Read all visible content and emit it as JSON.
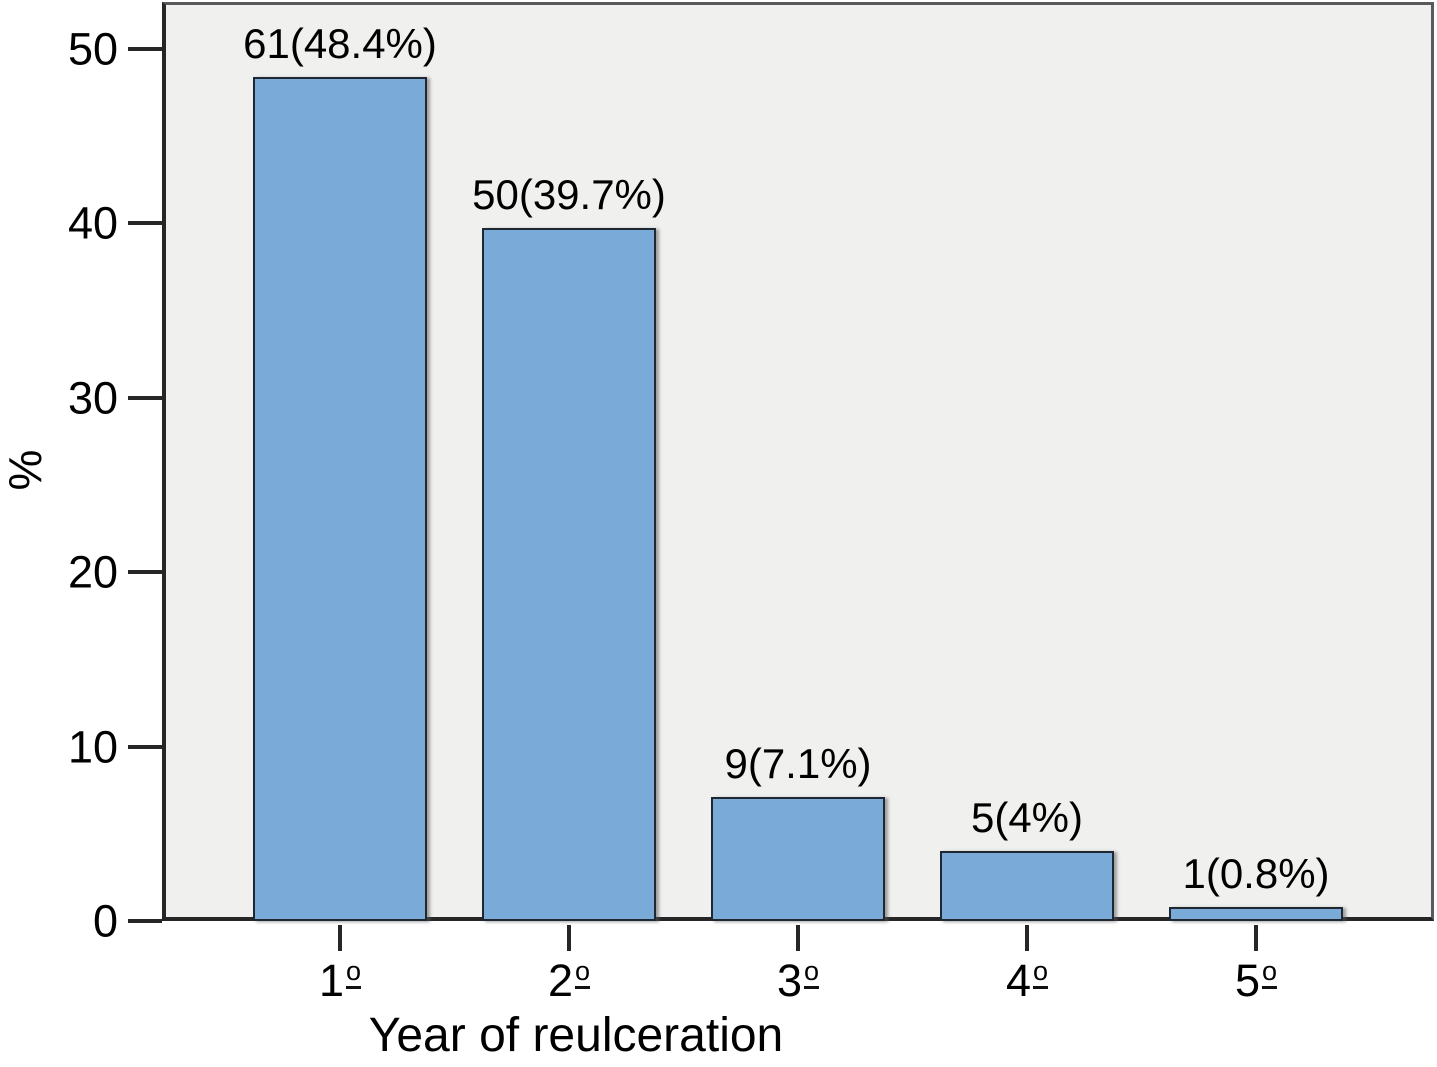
{
  "chart_data": {
    "type": "bar",
    "title": "",
    "xlabel": "Year of reulceration",
    "ylabel": "%",
    "categories": [
      "1",
      "2",
      "3",
      "4",
      "5"
    ],
    "category_ordinal_suffix": "o",
    "counts": [
      61,
      50,
      9,
      5,
      1
    ],
    "values": [
      48.4,
      39.7,
      7.1,
      4,
      0.8
    ],
    "bar_labels": [
      "61(48.4%)",
      "50(39.7%)",
      "9(7.1%)",
      "5(4%)",
      "1(0.8%)"
    ],
    "yticks": [
      0,
      10,
      20,
      30,
      40,
      50
    ],
    "ylim": [
      0,
      52.5
    ],
    "grid": false,
    "legend": false,
    "colors": {
      "bar_fill": "#7aaad7",
      "bar_border": "#1f2730",
      "plot_background": "#f0f0ef",
      "axis": "#262626",
      "text": "#000000"
    }
  }
}
